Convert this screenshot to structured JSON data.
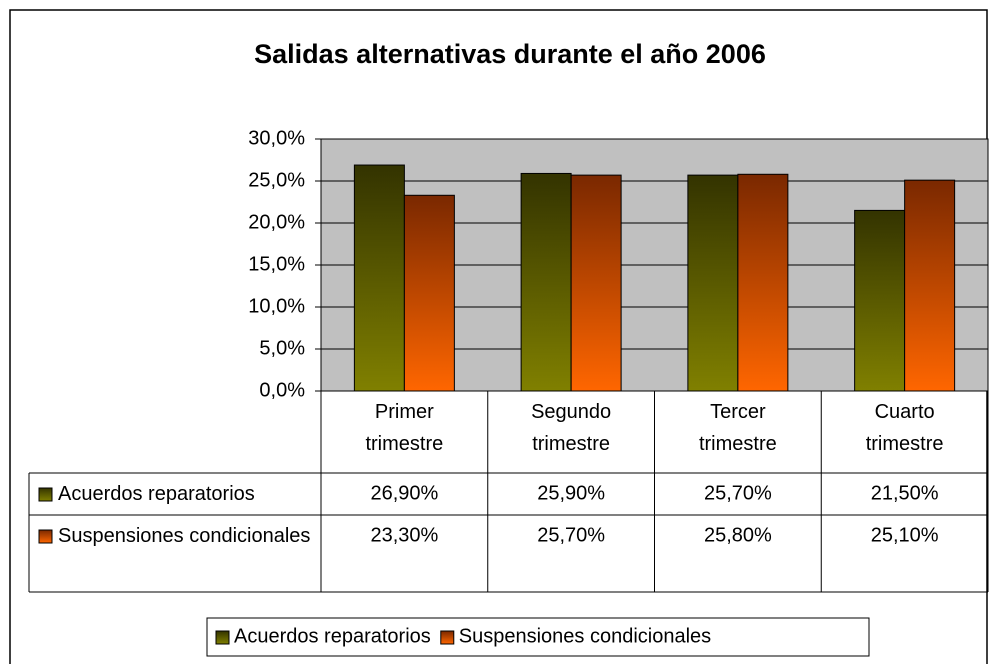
{
  "chart_data": {
    "type": "bar",
    "title": "Salidas alternativas durante el año 2006",
    "categories": [
      "Primer trimestre",
      "Segundo trimestre",
      "Tercer trimestre",
      "Cuarto trimestre"
    ],
    "series": [
      {
        "name": "Acuerdos reparatorios",
        "color": "#808000",
        "values": [
          26.9,
          25.9,
          25.7,
          21.5
        ],
        "value_labels": [
          "26,90%",
          "25,90%",
          "25,70%",
          "21,50%"
        ]
      },
      {
        "name": "Suspensiones condicionales",
        "color": "#ff6600",
        "values": [
          23.3,
          25.7,
          25.8,
          25.1
        ],
        "value_labels": [
          "23,30%",
          "25,70%",
          "25,80%",
          "25,10%"
        ]
      }
    ],
    "ylim": [
      0,
      30
    ],
    "yticks": [
      {
        "value": 0,
        "label": "0,0%"
      },
      {
        "value": 5,
        "label": "5,0%"
      },
      {
        "value": 10,
        "label": "10,0%"
      },
      {
        "value": 15,
        "label": "15,0%"
      },
      {
        "value": 20,
        "label": "20,0%"
      },
      {
        "value": 25,
        "label": "25,0%"
      },
      {
        "value": 30,
        "label": "30,0%"
      }
    ],
    "grid": true,
    "plot_background": "#c0c0c0"
  }
}
